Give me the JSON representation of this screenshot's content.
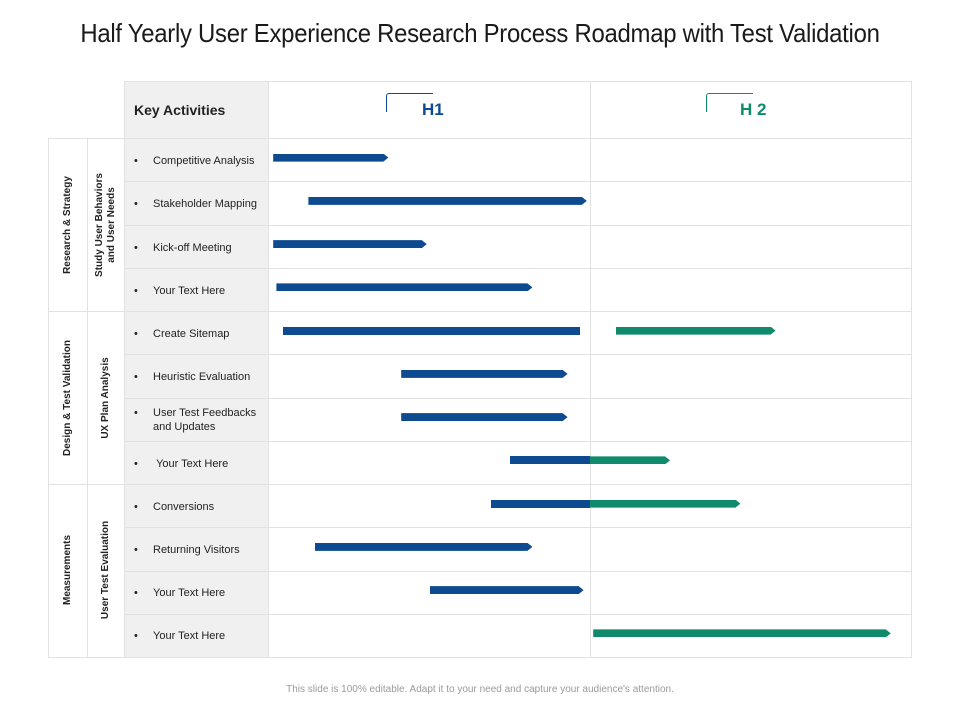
{
  "title": "Half Yearly User Experience Research Process Roadmap with Test Validation",
  "header": {
    "key_activities": "Key Activities",
    "h1": "H1",
    "h2": "H 2"
  },
  "colors": {
    "h1_color": "#0d4a8f",
    "h2_color": "#0f8a6a",
    "grid": "#e2e2e2",
    "shade": "#f0f0f0"
  },
  "groups": [
    {
      "category": "Research & Strategy",
      "sublabel_line1": "Study User Behaviors",
      "sublabel_line2": "and User Needs"
    },
    {
      "category": "Design & Test Validation",
      "sublabel_line1": "UX Plan Analysis",
      "sublabel_line2": ""
    },
    {
      "category": "Measurements",
      "sublabel_line1": "User Test Evaluation",
      "sublabel_line2": ""
    }
  ],
  "activities": [
    {
      "label": "Competitive Analysis"
    },
    {
      "label": "Stakeholder Mapping"
    },
    {
      "label": "Kick-off Meeting"
    },
    {
      "label": "Your Text Here"
    },
    {
      "label": "Create Sitemap"
    },
    {
      "label": "Heuristic Evaluation"
    },
    {
      "label": "User Test Feedbacks",
      "label2": "and Updates"
    },
    {
      "label": "Your Text Here"
    },
    {
      "label": "Conversions"
    },
    {
      "label": "Returning Visitors"
    },
    {
      "label": "Your Text Here"
    },
    {
      "label": "Your Text Here"
    }
  ],
  "chart_data": {
    "type": "gantt",
    "periods": [
      "H1",
      "H 2"
    ],
    "timeline_range": [
      0,
      2
    ],
    "tasks": [
      {
        "task": "Competitive Analysis",
        "segments": [
          {
            "start": 0.01,
            "end": 0.37,
            "period": "H1"
          }
        ]
      },
      {
        "task": "Stakeholder Mapping",
        "segments": [
          {
            "start": 0.12,
            "end": 0.99,
            "period": "H1"
          }
        ]
      },
      {
        "task": "Kick-off Meeting",
        "segments": [
          {
            "start": 0.01,
            "end": 0.49,
            "period": "H1"
          }
        ]
      },
      {
        "task": "Your Text Here",
        "segments": [
          {
            "start": 0.02,
            "end": 0.82,
            "period": "H1"
          }
        ]
      },
      {
        "task": "Create Sitemap",
        "segments": [
          {
            "start": 0.04,
            "end": 0.97,
            "period": "H1"
          },
          {
            "start": 1.08,
            "end": 1.58,
            "period": "H 2"
          }
        ]
      },
      {
        "task": "Heuristic Evaluation",
        "segments": [
          {
            "start": 0.41,
            "end": 0.93,
            "period": "H1"
          }
        ]
      },
      {
        "task": "User Test Feedbacks and Updates",
        "segments": [
          {
            "start": 0.41,
            "end": 0.93,
            "period": "H1"
          }
        ]
      },
      {
        "task": "Your Text Here",
        "segments": [
          {
            "start": 0.75,
            "end": 1.0,
            "period": "H1"
          },
          {
            "start": 1.0,
            "end": 1.25,
            "period": "H 2"
          }
        ]
      },
      {
        "task": "Conversions",
        "segments": [
          {
            "start": 0.69,
            "end": 1.0,
            "period": "H1"
          },
          {
            "start": 1.0,
            "end": 1.47,
            "period": "H 2"
          }
        ]
      },
      {
        "task": "Returning Visitors",
        "segments": [
          {
            "start": 0.14,
            "end": 0.82,
            "period": "H1"
          }
        ]
      },
      {
        "task": "Your Text Here",
        "segments": [
          {
            "start": 0.5,
            "end": 0.98,
            "period": "H1"
          }
        ]
      },
      {
        "task": "Your Text Here",
        "segments": [
          {
            "start": 1.01,
            "end": 1.94,
            "period": "H 2"
          }
        ]
      }
    ]
  },
  "footer": "This slide is 100% editable. Adapt it to your need and capture your audience's attention."
}
